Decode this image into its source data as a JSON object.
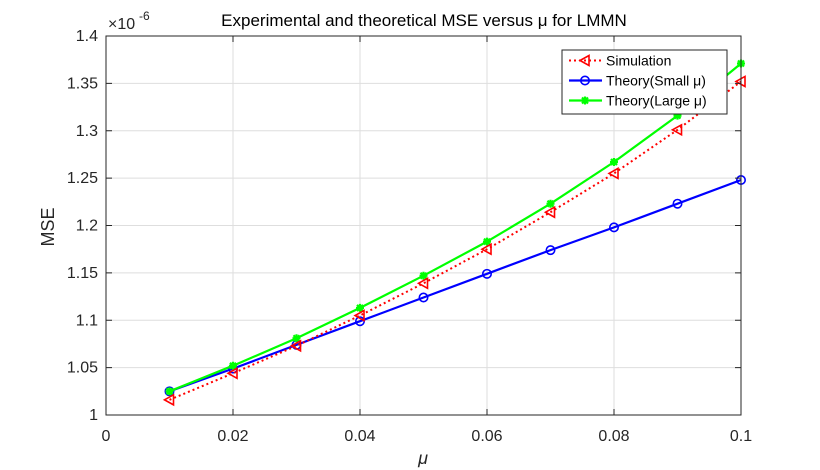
{
  "chart_data": {
    "type": "line",
    "title": "Experimental and theoretical MSE versus μ for LMMN",
    "xlabel": "μ",
    "ylabel": "MSE",
    "y_exponent_label": "×10",
    "y_exponent": "-6",
    "xlim": [
      0,
      0.1
    ],
    "ylim": [
      1.0,
      1.4
    ],
    "x_ticks": [
      0,
      0.02,
      0.04,
      0.06,
      0.08,
      0.1
    ],
    "x_tick_labels": [
      "0",
      "0.02",
      "0.04",
      "0.06",
      "0.08",
      "0.1"
    ],
    "y_ticks": [
      1.0,
      1.05,
      1.1,
      1.15,
      1.2,
      1.25,
      1.3,
      1.35,
      1.4
    ],
    "y_tick_labels": [
      "1",
      "1.05",
      "1.1",
      "1.15",
      "1.2",
      "1.25",
      "1.3",
      "1.35",
      "1.4"
    ],
    "grid": true,
    "legend_position": "top-right",
    "x": [
      0.01,
      0.02,
      0.03,
      0.04,
      0.05,
      0.06,
      0.07,
      0.08,
      0.09,
      0.1
    ],
    "series": [
      {
        "name": "Simulation",
        "color": "#ff0000",
        "line_style": "dotted",
        "marker": "triangle-left",
        "values": [
          1.016,
          1.044,
          1.073,
          1.105,
          1.139,
          1.175,
          1.214,
          1.255,
          1.301,
          1.352
        ]
      },
      {
        "name": "Theory(Small μ)",
        "color": "#0000ff",
        "line_style": "solid",
        "marker": "circle",
        "values": [
          1.025,
          1.049,
          1.074,
          1.099,
          1.124,
          1.149,
          1.174,
          1.198,
          1.223,
          1.248
        ]
      },
      {
        "name": "Theory(Large μ)",
        "color": "#00ff00",
        "line_style": "solid",
        "marker": "asterisk",
        "values": [
          1.025,
          1.052,
          1.081,
          1.113,
          1.147,
          1.183,
          1.223,
          1.267,
          1.316,
          1.371
        ]
      }
    ]
  }
}
